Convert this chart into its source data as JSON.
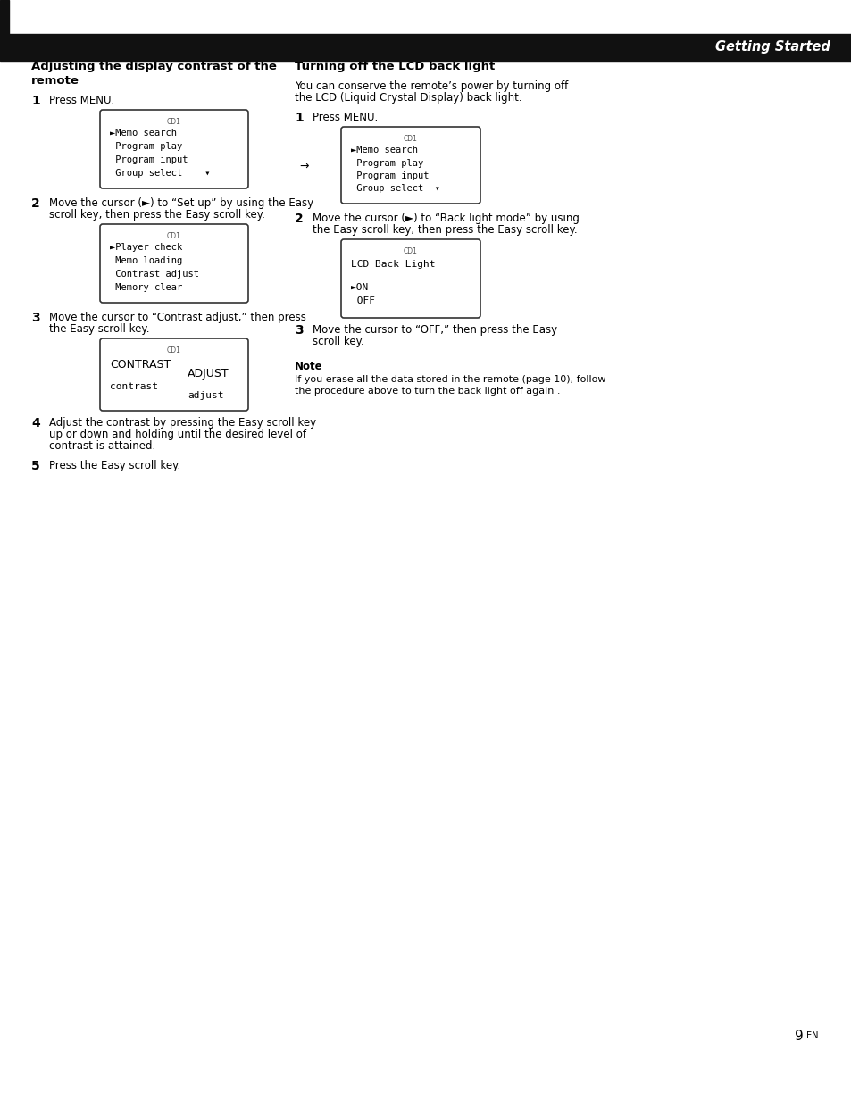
{
  "page_bg": "#ffffff",
  "header_bg": "#111111",
  "header_text": "Getting Started",
  "header_text_color": "#ffffff",
  "left_bar_color": "#111111",
  "section1_title_line1": "Adjusting the display contrast of the",
  "section1_title_line2": "remote",
  "section2_title": "Turning off the LCD back light",
  "section2_intro_line1": "You can conserve the remote’s power by turning off",
  "section2_intro_line2": "the LCD (Liquid Crystal Display) back light.",
  "step1_text": "Press MENU.",
  "step2_left_line1": "Move the cursor (►) to “Set up” by using the Easy",
  "step2_left_line2": "scroll key, then press the Easy scroll key.",
  "step3_left_line1": "Move the cursor to “Contrast adjust,” then press",
  "step3_left_line2": "the Easy scroll key.",
  "step4_left_line1": "Adjust the contrast by pressing the Easy scroll key",
  "step4_left_line2": "up or down and holding until the desired level of",
  "step4_left_line3": "contrast is attained.",
  "step5_left": "Press the Easy scroll key.",
  "step2_right_line1": "Move the cursor (►) to “Back light mode” by using",
  "step2_right_line2": "the Easy scroll key, then press the Easy scroll key.",
  "step3_right_line1": "Move the cursor to “OFF,” then press the Easy",
  "step3_right_line2": "scroll key.",
  "note_title": "Note",
  "note_line1": "If you erase all the data stored in the remote (page 10), follow",
  "note_line2": "the procedure above to turn the back light off again .",
  "page_number_main": "9",
  "page_number_sup": "EN"
}
